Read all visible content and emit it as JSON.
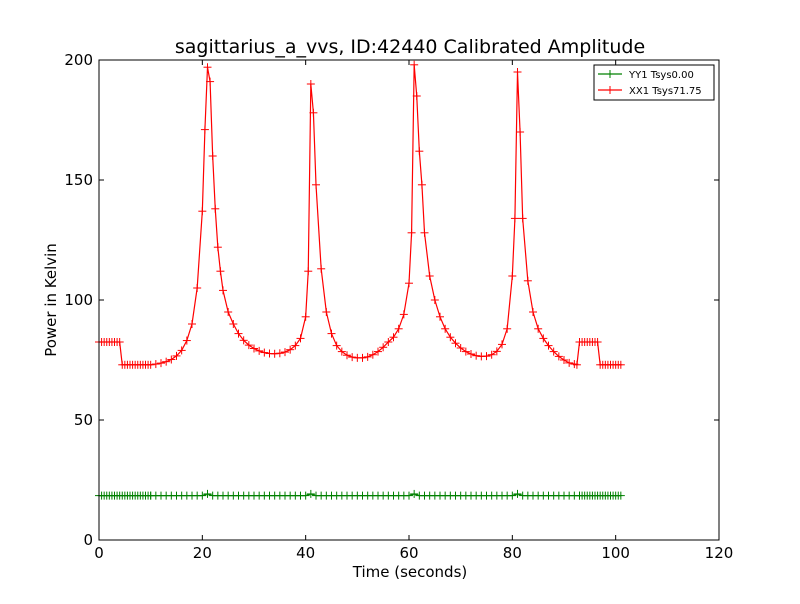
{
  "chart_data": {
    "type": "line",
    "title": "sagittarius_a_vvs, ID:42440 Calibrated Amplitude",
    "xlabel": "Time (seconds)",
    "ylabel": "Power in Kelvin",
    "xlim": [
      0,
      120
    ],
    "ylim": [
      0,
      200
    ],
    "xticks": [
      0,
      20,
      40,
      60,
      80,
      100,
      120
    ],
    "yticks": [
      0,
      50,
      100,
      150,
      200
    ],
    "grid": false,
    "legend_position": "top-right",
    "marker": "+",
    "series": [
      {
        "name": "YY1 Tsys0.00",
        "color": "#008000",
        "segments": [
          {
            "x_start": 0,
            "x_end": 10,
            "step": 0.5,
            "y": 18.5
          },
          {
            "x_start": 10,
            "x_end": 93,
            "step": 1,
            "y": 18.5
          },
          {
            "x_start": 93,
            "x_end": 101,
            "step": 0.5,
            "y": 18.5
          }
        ],
        "bumps": [
          {
            "x": 21,
            "y": 19.2
          },
          {
            "x": 41,
            "y": 19.2
          },
          {
            "x": 61,
            "y": 19.2
          },
          {
            "x": 81,
            "y": 19.2
          }
        ]
      },
      {
        "name": "XX1 Tsys71.75",
        "color": "#ff0000",
        "points": [
          [
            0,
            82.5
          ],
          [
            0.5,
            82.5
          ],
          [
            1,
            82.5
          ],
          [
            1.5,
            82.5
          ],
          [
            2,
            82.5
          ],
          [
            2.5,
            82.5
          ],
          [
            3,
            82.5
          ],
          [
            3.5,
            82.5
          ],
          [
            4,
            82.5
          ],
          [
            4.5,
            73
          ],
          [
            5,
            73
          ],
          [
            5.5,
            73
          ],
          [
            6,
            73
          ],
          [
            6.5,
            73
          ],
          [
            7,
            73
          ],
          [
            7.5,
            73
          ],
          [
            8,
            73
          ],
          [
            8.5,
            73
          ],
          [
            9,
            73
          ],
          [
            9.5,
            73
          ],
          [
            10,
            73
          ],
          [
            11,
            73.3
          ],
          [
            12,
            73.7
          ],
          [
            13,
            74.3
          ],
          [
            14,
            75.2
          ],
          [
            15,
            76.7
          ],
          [
            16,
            79
          ],
          [
            17,
            83.1
          ],
          [
            18,
            90
          ],
          [
            19,
            105
          ],
          [
            20,
            137
          ],
          [
            20.5,
            171
          ],
          [
            21,
            197
          ],
          [
            21.5,
            191
          ],
          [
            22,
            160
          ],
          [
            22.5,
            138
          ],
          [
            23,
            122
          ],
          [
            23.5,
            112
          ],
          [
            24,
            104
          ],
          [
            25,
            95
          ],
          [
            26,
            90
          ],
          [
            27,
            86
          ],
          [
            28,
            83.2
          ],
          [
            29,
            81.2
          ],
          [
            30,
            79.8
          ],
          [
            31,
            78.8
          ],
          [
            32,
            78.1
          ],
          [
            33,
            77.7
          ],
          [
            34,
            77.6
          ],
          [
            35,
            77.8
          ],
          [
            36,
            78.3
          ],
          [
            37,
            79.3
          ],
          [
            38,
            81
          ],
          [
            39,
            84
          ],
          [
            40,
            93
          ],
          [
            40.5,
            112
          ],
          [
            41,
            190
          ],
          [
            41.5,
            178
          ],
          [
            42,
            148
          ],
          [
            43,
            113
          ],
          [
            44,
            95
          ],
          [
            45,
            86
          ],
          [
            46,
            81
          ],
          [
            47,
            78.5
          ],
          [
            48,
            77
          ],
          [
            49,
            76.2
          ],
          [
            50,
            75.9
          ],
          [
            51,
            75.9
          ],
          [
            52,
            76.3
          ],
          [
            53,
            77.2
          ],
          [
            54,
            78.5
          ],
          [
            55,
            80.3
          ],
          [
            56,
            82.5
          ],
          [
            57,
            84.5
          ],
          [
            58,
            88
          ],
          [
            59,
            94
          ],
          [
            60,
            107
          ],
          [
            60.5,
            128
          ],
          [
            61,
            198
          ],
          [
            61.5,
            185
          ],
          [
            62,
            162
          ],
          [
            62.5,
            148
          ],
          [
            63,
            128
          ],
          [
            64,
            110
          ],
          [
            65,
            100
          ],
          [
            66,
            93
          ],
          [
            67,
            88
          ],
          [
            68,
            84.5
          ],
          [
            69,
            82
          ],
          [
            70,
            80
          ],
          [
            71,
            78.5
          ],
          [
            72,
            77.5
          ],
          [
            73,
            76.8
          ],
          [
            74,
            76.5
          ],
          [
            75,
            76.6
          ],
          [
            76,
            77.2
          ],
          [
            77,
            78.6
          ],
          [
            78,
            81.5
          ],
          [
            79,
            88
          ],
          [
            80,
            110
          ],
          [
            80.5,
            134
          ],
          [
            81,
            195
          ],
          [
            81.5,
            170
          ],
          [
            82,
            134
          ],
          [
            83,
            108
          ],
          [
            84,
            95
          ],
          [
            85,
            88
          ],
          [
            86,
            84
          ],
          [
            87,
            81
          ],
          [
            88,
            78.5
          ],
          [
            89,
            76.5
          ],
          [
            90,
            75
          ],
          [
            91,
            73.8
          ],
          [
            92,
            73.3
          ],
          [
            92.5,
            73
          ],
          [
            93,
            82.5
          ],
          [
            93.5,
            82.5
          ],
          [
            94,
            82.5
          ],
          [
            94.5,
            82.5
          ],
          [
            95,
            82.5
          ],
          [
            95.5,
            82.5
          ],
          [
            96,
            82.5
          ],
          [
            96.5,
            82.5
          ],
          [
            97,
            73
          ],
          [
            97.5,
            73
          ],
          [
            98,
            73
          ],
          [
            98.5,
            73
          ],
          [
            99,
            73
          ],
          [
            99.5,
            73
          ],
          [
            100,
            73
          ],
          [
            100.5,
            73
          ],
          [
            101,
            73
          ]
        ]
      }
    ]
  }
}
